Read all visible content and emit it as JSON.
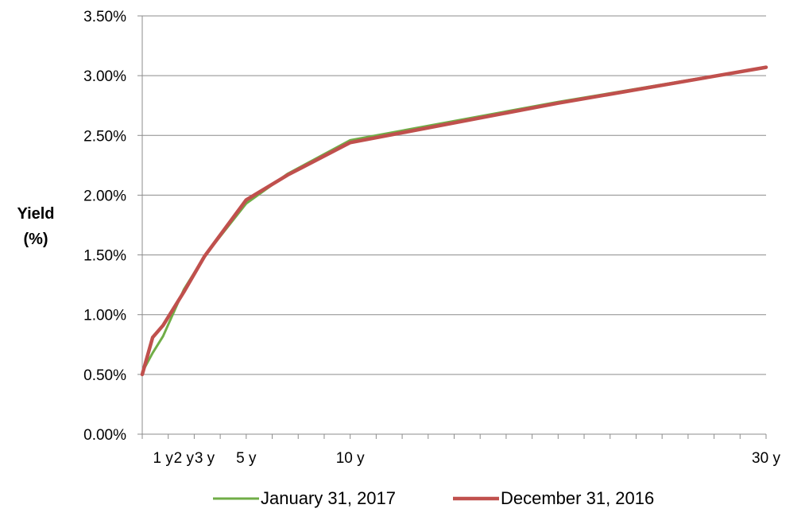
{
  "chart_data": {
    "type": "line",
    "title": "",
    "ylabel_line1": "Yield",
    "ylabel_line2": "(%)",
    "xlabel": "",
    "ylim": [
      0,
      0.035
    ],
    "xlim": [
      0,
      30
    ],
    "y_ticks": [
      "0.00%",
      "0.50%",
      "1.00%",
      "1.50%",
      "2.00%",
      "2.50%",
      "3.00%",
      "3.50%"
    ],
    "y_tick_values": [
      0,
      0.005,
      0.01,
      0.015,
      0.02,
      0.025,
      0.03,
      0.035
    ],
    "x_tick_labels": [
      {
        "label": "1 y",
        "value": 1
      },
      {
        "label": "2 y",
        "value": 2
      },
      {
        "label": "3 y",
        "value": 3
      },
      {
        "label": "5 y",
        "value": 5
      },
      {
        "label": "10 y",
        "value": 10
      },
      {
        "label": "30 y",
        "value": 30
      }
    ],
    "x_minor_tick_count": 25,
    "grid": "horizontal",
    "legend_position": "bottom",
    "series": [
      {
        "name": "January 31, 2017",
        "color": "#70ad47",
        "x": [
          0,
          0.5,
          1,
          2,
          3,
          5,
          7,
          10,
          20,
          30
        ],
        "y": [
          0.0052,
          0.0068,
          0.0082,
          0.0121,
          0.0149,
          0.0193,
          0.0218,
          0.0246,
          0.0278,
          0.0307
        ]
      },
      {
        "name": "December 31, 2016",
        "color": "#c0504d",
        "x": [
          0,
          0.5,
          1,
          2,
          3,
          5,
          7,
          10,
          20,
          30
        ],
        "y": [
          0.005,
          0.0081,
          0.0091,
          0.0119,
          0.0149,
          0.0196,
          0.0217,
          0.0244,
          0.0277,
          0.0307
        ]
      }
    ]
  }
}
